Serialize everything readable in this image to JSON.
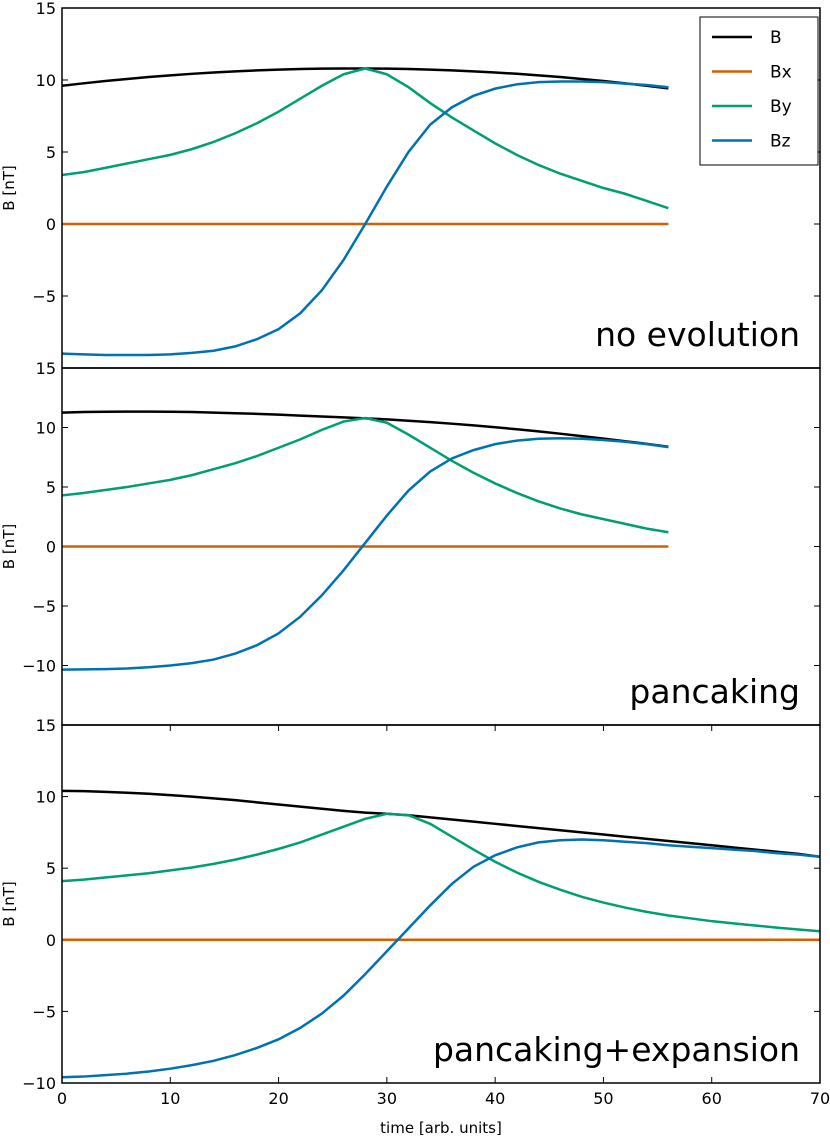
{
  "chart_data": [
    {
      "type": "line",
      "annotation": "no evolution",
      "ylabel": "B [nT]",
      "legend": "upper right",
      "xlim": [
        0,
        70
      ],
      "ylim": [
        -10,
        15
      ],
      "yticks": [
        {
          "value": -5,
          "label": "−5"
        },
        0,
        5,
        10,
        15
      ],
      "x": [
        0,
        2,
        4,
        6,
        8,
        10,
        12,
        14,
        16,
        18,
        20,
        22,
        24,
        26,
        28,
        30,
        32,
        34,
        36,
        38,
        40,
        42,
        44,
        46,
        48,
        50,
        52,
        54,
        56
      ],
      "series": [
        {
          "name": "B",
          "color": "#000000",
          "values": [
            9.6,
            9.77,
            9.93,
            10.07,
            10.21,
            10.32,
            10.43,
            10.52,
            10.6,
            10.67,
            10.72,
            10.76,
            10.79,
            10.8,
            10.8,
            10.79,
            10.76,
            10.72,
            10.67,
            10.6,
            10.52,
            10.43,
            10.32,
            10.21,
            10.07,
            9.93,
            9.77,
            9.6,
            9.42
          ]
        },
        {
          "name": "Bx",
          "color": "#d55e00",
          "values": [
            0,
            0,
            0,
            0,
            0,
            0,
            0,
            0,
            0,
            0,
            0,
            0,
            0,
            0,
            0,
            0,
            0,
            0,
            0,
            0,
            0,
            0,
            0,
            0,
            0,
            0,
            0,
            0,
            0
          ]
        },
        {
          "name": "By",
          "color": "#009e73",
          "values": [
            3.4,
            3.6,
            3.9,
            4.2,
            4.5,
            4.8,
            5.2,
            5.7,
            6.3,
            7.0,
            7.8,
            8.7,
            9.6,
            10.4,
            10.8,
            10.4,
            9.5,
            8.4,
            7.4,
            6.5,
            5.6,
            4.8,
            4.1,
            3.5,
            3.0,
            2.5,
            2.1,
            1.6,
            1.1
          ]
        },
        {
          "name": "Bz",
          "color": "#0072b2",
          "values": [
            -9.0,
            -9.05,
            -9.1,
            -9.1,
            -9.1,
            -9.05,
            -8.95,
            -8.8,
            -8.5,
            -8.0,
            -7.3,
            -6.2,
            -4.6,
            -2.5,
            0.0,
            2.6,
            5.0,
            6.9,
            8.1,
            8.9,
            9.4,
            9.7,
            9.85,
            9.9,
            9.9,
            9.85,
            9.75,
            9.65,
            9.5
          ]
        }
      ]
    },
    {
      "type": "line",
      "annotation": "pancaking",
      "ylabel": "B [nT]",
      "xlim": [
        0,
        70
      ],
      "ylim": [
        -15,
        15
      ],
      "yticks": [
        {
          "value": -10,
          "label": "−10"
        },
        {
          "value": -5,
          "label": "−5"
        },
        0,
        5,
        10,
        15
      ],
      "x": [
        0,
        2,
        4,
        6,
        8,
        10,
        12,
        14,
        16,
        18,
        20,
        22,
        24,
        26,
        28,
        30,
        32,
        34,
        36,
        38,
        40,
        42,
        44,
        46,
        48,
        50,
        52,
        54,
        56
      ],
      "series": [
        {
          "color": "#000000",
          "values": [
            11.25,
            11.3,
            11.32,
            11.33,
            11.33,
            11.32,
            11.3,
            11.25,
            11.2,
            11.15,
            11.08,
            11.0,
            10.92,
            10.85,
            10.77,
            10.68,
            10.57,
            10.45,
            10.32,
            10.18,
            10.02,
            9.85,
            9.67,
            9.48,
            9.28,
            9.07,
            8.85,
            8.62,
            8.38
          ]
        },
        {
          "color": "#d55e00",
          "values": [
            0,
            0,
            0,
            0,
            0,
            0,
            0,
            0,
            0,
            0,
            0,
            0,
            0,
            0,
            0,
            0,
            0,
            0,
            0,
            0,
            0,
            0,
            0,
            0,
            0,
            0,
            0,
            0,
            0
          ]
        },
        {
          "color": "#009e73",
          "values": [
            4.3,
            4.5,
            4.75,
            5.0,
            5.3,
            5.6,
            6.0,
            6.5,
            7.0,
            7.6,
            8.3,
            9.0,
            9.8,
            10.5,
            10.8,
            10.4,
            9.4,
            8.3,
            7.2,
            6.2,
            5.3,
            4.5,
            3.8,
            3.2,
            2.7,
            2.3,
            1.9,
            1.5,
            1.2
          ]
        },
        {
          "color": "#0072b2",
          "values": [
            -10.35,
            -10.33,
            -10.3,
            -10.25,
            -10.15,
            -10.0,
            -9.8,
            -9.5,
            -9.0,
            -8.3,
            -7.3,
            -5.9,
            -4.1,
            -2.0,
            0.3,
            2.6,
            4.7,
            6.3,
            7.4,
            8.1,
            8.6,
            8.9,
            9.05,
            9.1,
            9.05,
            8.95,
            8.8,
            8.6,
            8.35
          ]
        }
      ]
    },
    {
      "type": "line",
      "annotation": "pancaking+expansion",
      "ylabel": "B [nT]",
      "xlabel": "time [arb. units]",
      "xlim": [
        0,
        70
      ],
      "ylim": [
        -10,
        15
      ],
      "xticks": [
        0,
        10,
        20,
        30,
        40,
        50,
        60,
        70
      ],
      "yticks": [
        {
          "value": -10,
          "label": "−10"
        },
        {
          "value": -5,
          "label": "−5"
        },
        0,
        5,
        10,
        15
      ],
      "x": [
        0,
        2,
        4,
        6,
        8,
        10,
        12,
        14,
        16,
        18,
        20,
        22,
        24,
        26,
        28,
        30,
        32,
        34,
        36,
        38,
        40,
        42,
        44,
        46,
        48,
        50,
        52,
        54,
        56,
        58,
        60,
        62,
        64,
        66,
        68,
        70
      ],
      "series": [
        {
          "color": "#000000",
          "values": [
            10.4,
            10.38,
            10.33,
            10.27,
            10.2,
            10.1,
            10.0,
            9.88,
            9.75,
            9.6,
            9.45,
            9.3,
            9.15,
            9.0,
            8.88,
            8.8,
            8.7,
            8.55,
            8.4,
            8.25,
            8.1,
            7.95,
            7.8,
            7.65,
            7.5,
            7.35,
            7.2,
            7.05,
            6.9,
            6.75,
            6.6,
            6.45,
            6.3,
            6.15,
            6.0,
            5.8
          ]
        },
        {
          "color": "#d55e00",
          "values": [
            0,
            0,
            0,
            0,
            0,
            0,
            0,
            0,
            0,
            0,
            0,
            0,
            0,
            0,
            0,
            0,
            0,
            0,
            0,
            0,
            0,
            0,
            0,
            0,
            0,
            0,
            0,
            0,
            0,
            0,
            0,
            0,
            0,
            0,
            0,
            0
          ]
        },
        {
          "color": "#009e73",
          "values": [
            4.1,
            4.2,
            4.35,
            4.5,
            4.65,
            4.85,
            5.05,
            5.3,
            5.6,
            5.95,
            6.35,
            6.8,
            7.35,
            7.9,
            8.45,
            8.8,
            8.7,
            8.1,
            7.2,
            6.3,
            5.45,
            4.7,
            4.05,
            3.5,
            3.0,
            2.6,
            2.25,
            1.95,
            1.7,
            1.5,
            1.3,
            1.15,
            1.0,
            0.85,
            0.72,
            0.6
          ]
        },
        {
          "color": "#0072b2",
          "values": [
            -9.6,
            -9.55,
            -9.45,
            -9.35,
            -9.2,
            -9.0,
            -8.75,
            -8.45,
            -8.05,
            -7.55,
            -6.95,
            -6.15,
            -5.15,
            -3.9,
            -2.4,
            -0.8,
            0.8,
            2.4,
            3.9,
            5.1,
            5.9,
            6.45,
            6.8,
            6.95,
            7.0,
            6.95,
            6.85,
            6.75,
            6.6,
            6.5,
            6.4,
            6.3,
            6.2,
            6.05,
            5.95,
            5.8
          ]
        }
      ]
    }
  ]
}
